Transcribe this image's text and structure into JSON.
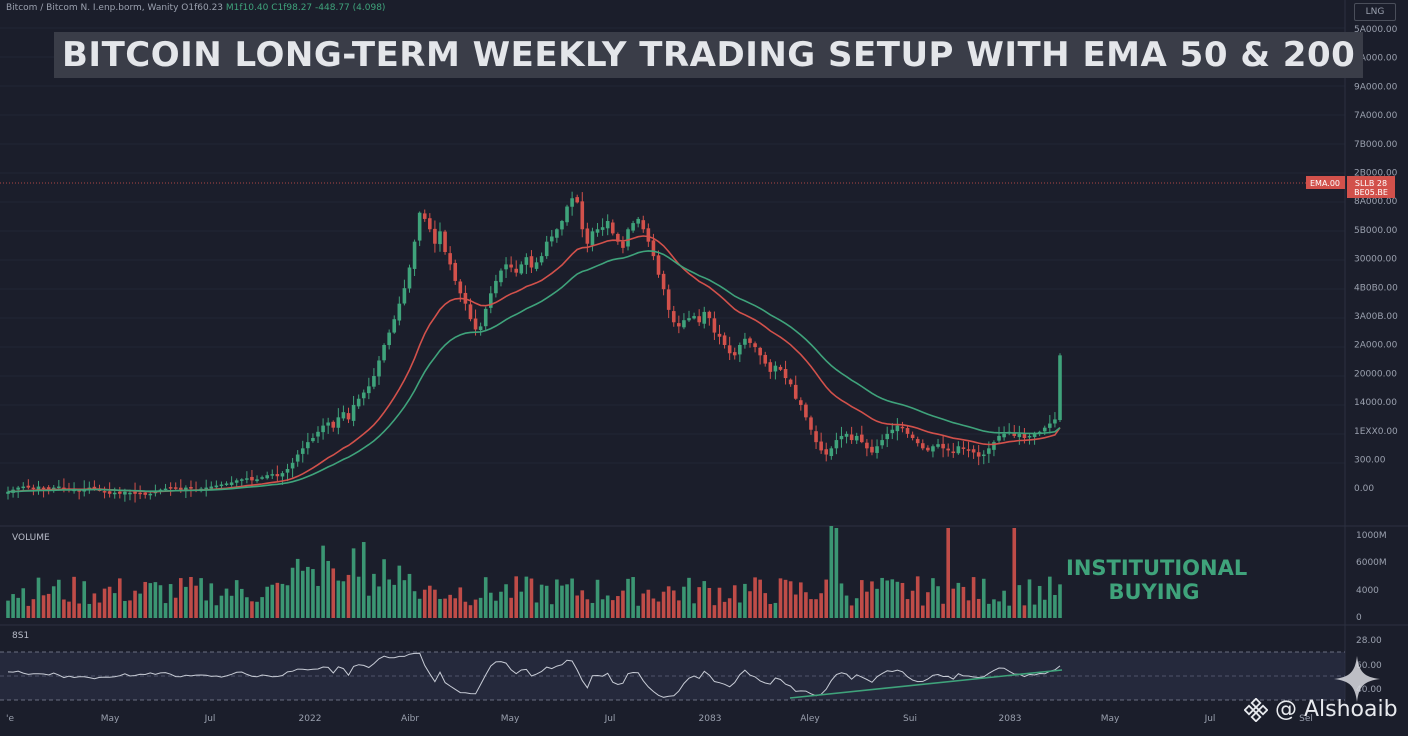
{
  "header": {
    "symbol": "Bitcom / Bitcom N.  I.enp.borm,  Wanity",
    "o": "O1f60.23",
    "h": "M1f10.40",
    "l": "C1f98.27",
    "c": "-448.77 (4.098)"
  },
  "lng_button": "LNG",
  "title": "BITCOIN LONG-TERM WEEKLY TRADING SETUP WITH EMA 50 & 200",
  "annotation": [
    "INSTITUTIONAL",
    "BUYING"
  ],
  "watermark": "@ Alshoaib",
  "colors": {
    "bull": "#3fa37b",
    "bear": "#d2514b",
    "ema50": "#d2514b",
    "ema200": "#3fa37b",
    "background": "#1b1e2b",
    "price_label": "#d2514b"
  },
  "chart_data": {
    "type": "candlestick",
    "timeframe": "weekly",
    "x_labels": [
      "'e",
      "May",
      "Jul",
      "2022",
      "Aibr",
      "May",
      "Jul",
      "2083",
      "Aley",
      "Sui",
      "2083",
      "May",
      "Jul",
      "Sel"
    ],
    "price_axis_labels": [
      "5A000.00",
      "8A000.00",
      "9A000.00",
      "7A000.00",
      "7B000.00",
      "2B000.00",
      "8A000.00",
      "5B000.00",
      "30000.00",
      "4B0B0.00",
      "3A00B.00",
      "2A000.00",
      "20000.00",
      "14000.00",
      "1EXX0.00",
      "300.00",
      "0.00"
    ],
    "current_price_label": [
      "SLLB 28",
      "BE05.BE"
    ],
    "current_price_tag": "EMA.00",
    "volume_label": "VOLUME",
    "volume_axis": [
      "1000M",
      "6000M",
      "4000",
      "0"
    ],
    "rsi_label": "8S1",
    "rsi_axis": [
      "28.00",
      "60.00",
      "40.00"
    ],
    "series": [
      {
        "name": "EMA 50"
      },
      {
        "name": "EMA 200"
      }
    ],
    "closes": [
      8,
      10,
      12,
      13,
      12,
      11,
      13,
      11,
      10,
      12,
      13,
      12,
      11,
      10,
      9,
      11,
      12,
      11,
      10,
      8,
      6,
      7,
      6,
      8,
      7,
      6,
      7,
      5,
      6,
      8,
      10,
      11,
      12,
      11,
      10,
      12,
      11,
      10,
      11,
      12,
      13,
      14,
      15,
      16,
      17,
      19,
      20,
      21,
      19,
      20,
      22,
      24,
      25,
      23,
      26,
      30,
      36,
      44,
      50,
      56,
      60,
      66,
      72,
      75,
      70,
      80,
      85,
      78,
      92,
      98,
      104,
      110,
      120,
      135,
      150,
      162,
      175,
      190,
      205,
      225,
      250,
      278,
      272,
      262,
      248,
      260,
      240,
      228,
      212,
      200,
      190,
      175,
      165,
      168,
      185,
      200,
      212,
      222,
      228,
      225,
      220,
      228,
      235,
      225,
      230,
      236,
      250,
      255,
      262,
      270,
      284,
      292,
      288,
      262,
      248,
      260,
      262,
      264,
      270,
      258,
      250,
      244,
      262,
      268,
      272,
      262,
      250,
      236,
      218,
      204,
      184,
      172,
      168,
      174,
      176,
      178,
      172,
      182,
      176,
      162,
      158,
      150,
      142,
      140,
      150,
      156,
      152,
      148,
      140,
      132,
      124,
      130,
      126,
      118,
      112,
      98,
      92,
      80,
      68,
      56,
      48,
      44,
      50,
      58,
      62,
      64,
      58,
      62,
      56,
      50,
      46,
      52,
      58,
      64,
      68,
      72,
      70,
      64,
      60,
      55,
      50,
      48,
      52,
      54,
      50,
      48,
      46,
      52,
      50,
      48,
      46,
      42,
      44,
      50,
      56,
      62,
      64,
      66,
      62,
      64,
      60,
      62,
      64,
      66,
      70,
      74,
      78,
      140
    ]
  }
}
